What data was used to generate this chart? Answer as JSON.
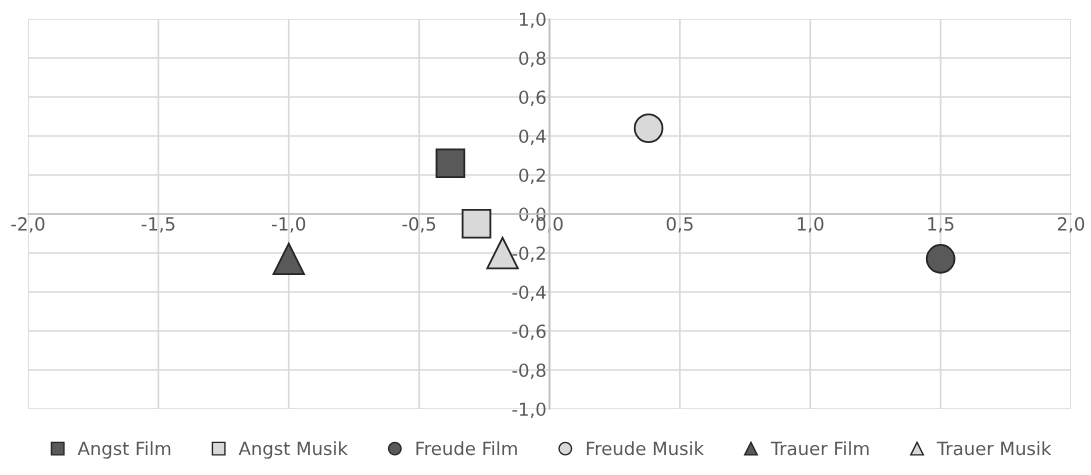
{
  "chart_data": {
    "type": "scatter",
    "grid": true,
    "legend": "bottom",
    "xlim": [
      -2,
      2
    ],
    "ylim": [
      -1,
      1
    ],
    "xticks": [
      {
        "value": -2,
        "label": "-2,0"
      },
      {
        "value": -1.5,
        "label": "-1,5"
      },
      {
        "value": -1,
        "label": "-1,0"
      },
      {
        "value": -0.5,
        "label": "-0,5"
      },
      {
        "value": 0,
        "label": "0,0"
      },
      {
        "value": 0.5,
        "label": "0,5"
      },
      {
        "value": 1,
        "label": "1,0"
      },
      {
        "value": 1.5,
        "label": "1,5"
      },
      {
        "value": 2,
        "label": "2,0"
      }
    ],
    "yticks": [
      {
        "value": -1,
        "label": "-1,0"
      },
      {
        "value": -0.8,
        "label": "-0,8"
      },
      {
        "value": -0.6,
        "label": "-0,6"
      },
      {
        "value": -0.4,
        "label": "-0,4"
      },
      {
        "value": -0.2,
        "label": "-0,2"
      },
      {
        "value": 0,
        "label": "0,0"
      },
      {
        "value": 0.2,
        "label": "0,2"
      },
      {
        "value": 0.4,
        "label": "0,4"
      },
      {
        "value": 0.6,
        "label": "0,6"
      },
      {
        "value": 0.8,
        "label": "0,8"
      },
      {
        "value": 1,
        "label": "1,0"
      }
    ],
    "series": [
      {
        "name": "Angst Film",
        "color": "#595959",
        "marker": "square",
        "x": [
          -0.38
        ],
        "values": [
          0.26
        ]
      },
      {
        "name": "Angst Musik",
        "color": "#d9d9d9",
        "marker": "square",
        "x": [
          -0.28
        ],
        "values": [
          -0.05
        ]
      },
      {
        "name": "Freude Film",
        "color": "#595959",
        "marker": "circle",
        "x": [
          1.5
        ],
        "values": [
          -0.23
        ]
      },
      {
        "name": "Freude Musik",
        "color": "#d9d9d9",
        "marker": "circle",
        "x": [
          0.38
        ],
        "values": [
          0.44
        ]
      },
      {
        "name": "Trauer Film",
        "color": "#595959",
        "marker": "triangle",
        "x": [
          -1.0
        ],
        "values": [
          -0.23
        ]
      },
      {
        "name": "Trauer Musik",
        "color": "#d9d9d9",
        "marker": "triangle",
        "x": [
          -0.18
        ],
        "values": [
          -0.2
        ]
      }
    ]
  }
}
